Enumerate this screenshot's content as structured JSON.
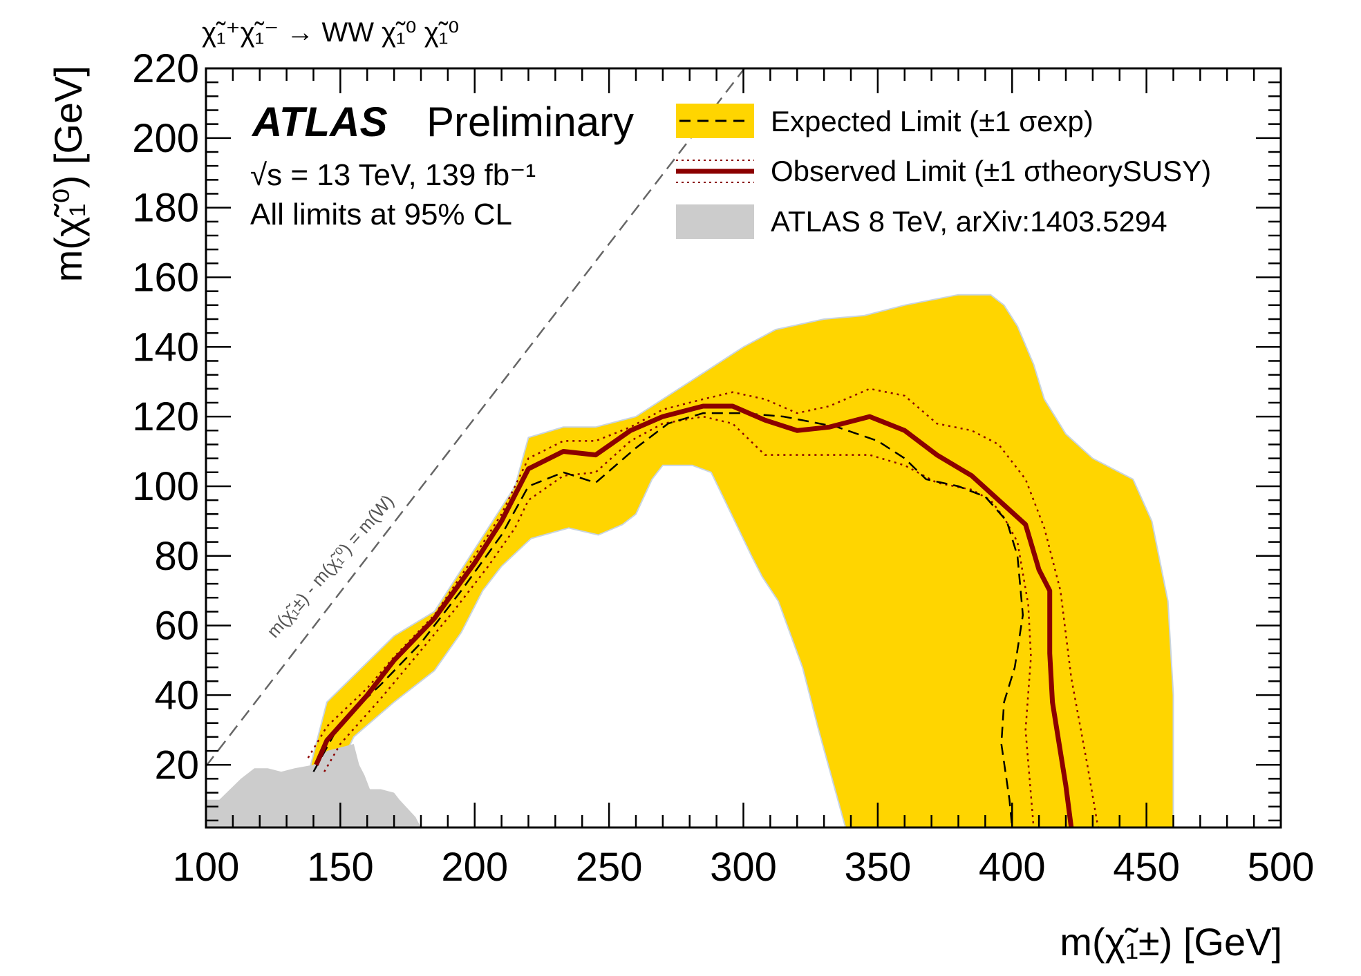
{
  "process_label": "χ̃₁⁺χ̃₁⁻ → WW χ̃₁⁰ χ̃₁⁰",
  "atlas_label": "ATLAS",
  "preliminary_label": "Preliminary",
  "energy_label": "√s = 13 TeV, 139 fb⁻¹",
  "cl_label": "All limits at 95% CL",
  "diagonal_label": "m(χ̃₁±) - m(χ̃₁⁰) = m(W)",
  "colors": {
    "expected_band": "#FFD500",
    "observed": "#8B0000",
    "atlas8tev": "#CCCCCC",
    "diagonal": "#666666"
  },
  "chart_data": {
    "type": "line",
    "xlabel": "m(χ̃₁±) [GeV]",
    "ylabel": "m(χ̃₁⁰) [GeV]",
    "xlim": [
      100,
      500
    ],
    "ylim": [
      2,
      220
    ],
    "x_ticks": [
      100,
      150,
      200,
      250,
      300,
      350,
      400,
      450,
      500
    ],
    "y_ticks": [
      20,
      40,
      60,
      80,
      100,
      120,
      140,
      160,
      180,
      200,
      220
    ],
    "legend": [
      {
        "name": "Expected Limit (±1 σexp)",
        "style": "dashed-band"
      },
      {
        "name": "Observed Limit (±1 σtheorySUSY)",
        "style": "solid-dotted"
      },
      {
        "name": "ATLAS 8 TeV, arXiv:1403.5294",
        "style": "gray-fill"
      }
    ],
    "legend_placement": "top-right",
    "expected_band_upper": [
      [
        133,
        2
      ],
      [
        145,
        38
      ],
      [
        170,
        57
      ],
      [
        185,
        64
      ],
      [
        200,
        82
      ],
      [
        215,
        100
      ],
      [
        220,
        114
      ],
      [
        233,
        117
      ],
      [
        245,
        117
      ],
      [
        260,
        120
      ],
      [
        280,
        130
      ],
      [
        300,
        140
      ],
      [
        312,
        145
      ],
      [
        330,
        148
      ],
      [
        345,
        149
      ],
      [
        360,
        152
      ],
      [
        380,
        155
      ],
      [
        392,
        155
      ],
      [
        397,
        152
      ],
      [
        402,
        146
      ],
      [
        408,
        135
      ],
      [
        412,
        125
      ],
      [
        420,
        115
      ],
      [
        430,
        108
      ],
      [
        445,
        102
      ],
      [
        452,
        90
      ],
      [
        458,
        67
      ],
      [
        460,
        40
      ],
      [
        460,
        2
      ]
    ],
    "expected_band_lower": [
      [
        338,
        2
      ],
      [
        328,
        30
      ],
      [
        322,
        48
      ],
      [
        313,
        67
      ],
      [
        307,
        74
      ],
      [
        303,
        80
      ],
      [
        293,
        96
      ],
      [
        288,
        104
      ],
      [
        281,
        106
      ],
      [
        270,
        106
      ],
      [
        266,
        102
      ],
      [
        260,
        92
      ],
      [
        255,
        89
      ],
      [
        246,
        86
      ],
      [
        235,
        88
      ],
      [
        221,
        85
      ],
      [
        210,
        77
      ],
      [
        203,
        70
      ],
      [
        195,
        58
      ],
      [
        185,
        47
      ],
      [
        170,
        38
      ],
      [
        155,
        28
      ],
      [
        150,
        20
      ]
    ],
    "expected": [
      [
        140,
        18
      ],
      [
        150,
        32
      ],
      [
        165,
        43
      ],
      [
        180,
        55
      ],
      [
        195,
        70
      ],
      [
        210,
        86
      ],
      [
        220,
        100
      ],
      [
        233,
        104
      ],
      [
        245,
        101
      ],
      [
        260,
        111
      ],
      [
        272,
        118
      ],
      [
        285,
        121
      ],
      [
        300,
        121
      ],
      [
        315,
        120
      ],
      [
        335,
        117
      ],
      [
        350,
        113
      ],
      [
        360,
        108
      ],
      [
        368,
        102
      ],
      [
        380,
        100
      ],
      [
        390,
        97
      ],
      [
        398,
        90
      ],
      [
        402,
        80
      ],
      [
        404,
        63
      ],
      [
        401,
        48
      ],
      [
        397,
        38
      ],
      [
        396,
        26
      ],
      [
        399,
        10
      ],
      [
        400,
        2
      ]
    ],
    "observed": [
      [
        141,
        20
      ],
      [
        145,
        27
      ],
      [
        160,
        40
      ],
      [
        170,
        50
      ],
      [
        185,
        62
      ],
      [
        200,
        78
      ],
      [
        210,
        90
      ],
      [
        220,
        105
      ],
      [
        233,
        110
      ],
      [
        245,
        109
      ],
      [
        258,
        116
      ],
      [
        270,
        120
      ],
      [
        285,
        123
      ],
      [
        296,
        123
      ],
      [
        308,
        119
      ],
      [
        320,
        116
      ],
      [
        332,
        117
      ],
      [
        347,
        120
      ],
      [
        360,
        116
      ],
      [
        372,
        109
      ],
      [
        385,
        103
      ],
      [
        395,
        96
      ],
      [
        405,
        89
      ],
      [
        410,
        76
      ],
      [
        414,
        70
      ],
      [
        414,
        52
      ],
      [
        415,
        38
      ],
      [
        420,
        14
      ],
      [
        422,
        2
      ]
    ],
    "observed_plus": [
      [
        138,
        22
      ],
      [
        145,
        31
      ],
      [
        160,
        42
      ],
      [
        170,
        51
      ],
      [
        185,
        63
      ],
      [
        200,
        80
      ],
      [
        210,
        92
      ],
      [
        220,
        108
      ],
      [
        233,
        113
      ],
      [
        245,
        113
      ],
      [
        258,
        117
      ],
      [
        270,
        122
      ],
      [
        285,
        125
      ],
      [
        296,
        127
      ],
      [
        308,
        125
      ],
      [
        320,
        121
      ],
      [
        332,
        123
      ],
      [
        347,
        128
      ],
      [
        360,
        126
      ],
      [
        372,
        118
      ],
      [
        385,
        116
      ],
      [
        395,
        112
      ],
      [
        405,
        102
      ],
      [
        412,
        88
      ],
      [
        418,
        70
      ],
      [
        422,
        45
      ],
      [
        428,
        20
      ],
      [
        432,
        2
      ]
    ],
    "observed_minus": [
      [
        144,
        18
      ],
      [
        150,
        26
      ],
      [
        165,
        39
      ],
      [
        178,
        51
      ],
      [
        192,
        64
      ],
      [
        205,
        77
      ],
      [
        215,
        88
      ],
      [
        220,
        96
      ],
      [
        233,
        103
      ],
      [
        245,
        104
      ],
      [
        258,
        113
      ],
      [
        270,
        118
      ],
      [
        285,
        120
      ],
      [
        296,
        118
      ],
      [
        308,
        109
      ],
      [
        320,
        109
      ],
      [
        332,
        109
      ],
      [
        347,
        109
      ],
      [
        360,
        106
      ],
      [
        372,
        101
      ],
      [
        385,
        99
      ],
      [
        392,
        96
      ],
      [
        397,
        91
      ],
      [
        402,
        84
      ],
      [
        406,
        66
      ],
      [
        407,
        51
      ],
      [
        405,
        30
      ],
      [
        408,
        2
      ]
    ],
    "atlas_8tev": [
      [
        100,
        2
      ],
      [
        100,
        10
      ],
      [
        105,
        10
      ],
      [
        113,
        16
      ],
      [
        118,
        19
      ],
      [
        123,
        19
      ],
      [
        128,
        18
      ],
      [
        133,
        19
      ],
      [
        140,
        20
      ],
      [
        145,
        24
      ],
      [
        150,
        25
      ],
      [
        155,
        26
      ],
      [
        157,
        20
      ],
      [
        159,
        17
      ],
      [
        161,
        13
      ],
      [
        165,
        13
      ],
      [
        170,
        12
      ],
      [
        172,
        10
      ],
      [
        178,
        5
      ],
      [
        180,
        2
      ]
    ]
  }
}
